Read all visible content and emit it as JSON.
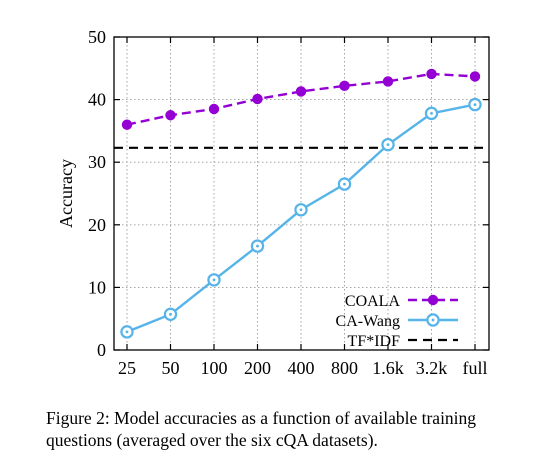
{
  "chart_data": {
    "type": "line",
    "categories": [
      "25",
      "50",
      "100",
      "200",
      "400",
      "800",
      "1.6k",
      "3.2k",
      "full"
    ],
    "series": [
      {
        "name": "COALA",
        "color": "#9400d3",
        "dash": true,
        "values": [
          36.0,
          37.5,
          38.5,
          40.1,
          41.3,
          42.2,
          42.9,
          44.1,
          43.7
        ]
      },
      {
        "name": "CA-Wang",
        "color": "#56b4e9",
        "dash": false,
        "values": [
          2.9,
          5.7,
          11.2,
          16.6,
          22.4,
          26.5,
          32.8,
          37.8,
          39.2
        ]
      }
    ],
    "baseline": {
      "name": "TF*IDF",
      "color": "#000000",
      "value": 32.3
    },
    "ylabel": "Accuracy",
    "xlabel": "",
    "ylim": [
      0,
      50
    ],
    "yticks": [
      0,
      10,
      20,
      30,
      40,
      50
    ],
    "grid": true,
    "legend_position": "bottom-right"
  },
  "caption": {
    "line1": "Figure 2: Model accuracies as a function of available training",
    "line2": "questions (averaged over the six cQA datasets)."
  }
}
